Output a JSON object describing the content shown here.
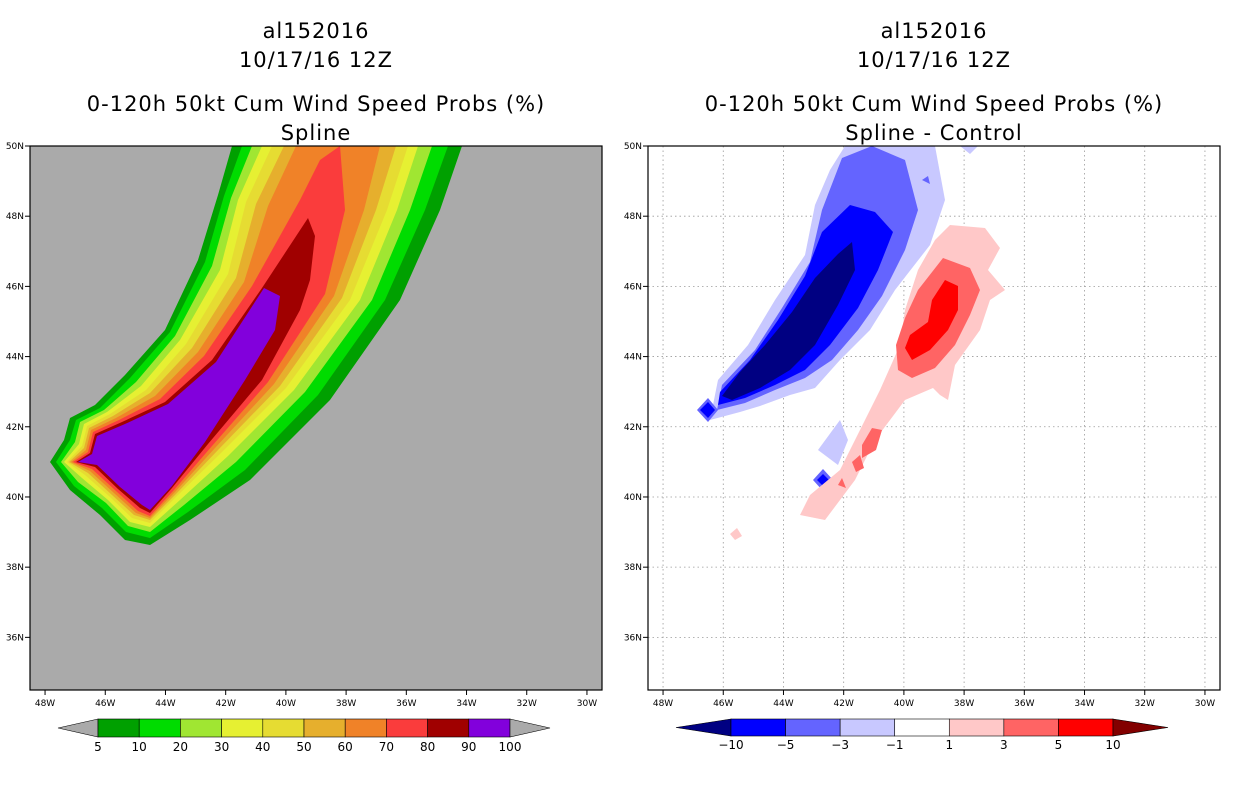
{
  "left_panel": {
    "title_line1": "al152016",
    "title_line2": "10/17/16 12Z",
    "title_line3": "0-120h 50kt Cum Wind Speed Probs (%)",
    "title_line4": "Spline"
  },
  "right_panel": {
    "title_line1": "al152016",
    "title_line2": "10/17/16 12Z",
    "title_line3": "0-120h 50kt Cum Wind Speed Probs (%)",
    "title_line4": "Spline - Control"
  },
  "colors": {
    "background_land": "#aaaaaa",
    "left_scale": [
      "#00a000",
      "#00dc00",
      "#a0e632",
      "#e6f032",
      "#e6dc32",
      "#e6af2d",
      "#f08228",
      "#fa3c3c",
      "#a00000",
      "#8200dc"
    ],
    "right_scale": [
      "#000082",
      "#0000ff",
      "#6464ff",
      "#c8c8ff",
      "#ffffff",
      "#ffc8c8",
      "#ff6464",
      "#ff0000",
      "#820000"
    ]
  },
  "chart_data": [
    {
      "type": "heatmap",
      "title": "0-120h 50kt Cum Wind Speed Probs (%) Spline",
      "x_axis": {
        "range_deg_w": [
          48.5,
          29.5
        ],
        "ticks": [
          "48W",
          "46W",
          "44W",
          "42W",
          "40W",
          "38W",
          "36W",
          "34W",
          "32W",
          "30W"
        ],
        "tick_values": [
          48,
          46,
          44,
          42,
          40,
          38,
          36,
          34,
          32,
          30
        ]
      },
      "y_axis": {
        "range_deg_n": [
          34.5,
          50
        ],
        "ticks": [
          "36N",
          "38N",
          "40N",
          "42N",
          "44N",
          "46N",
          "48N",
          "50N"
        ],
        "tick_values": [
          36,
          38,
          40,
          42,
          44,
          46,
          48,
          50
        ]
      },
      "grid": false,
      "colorbar": {
        "labels": [
          "5",
          "10",
          "20",
          "30",
          "40",
          "50",
          "60",
          "70",
          "80",
          "90",
          "100"
        ],
        "values": [
          5,
          10,
          20,
          30,
          40,
          50,
          60,
          70,
          80,
          90,
          100
        ],
        "extend": "both"
      }
    },
    {
      "type": "heatmap",
      "title": "0-120h 50kt Cum Wind Speed Probs (%) Spline - Control",
      "x_axis": {
        "range_deg_w": [
          48.5,
          29.5
        ],
        "ticks": [
          "48W",
          "46W",
          "44W",
          "42W",
          "40W",
          "38W",
          "36W",
          "34W",
          "32W",
          "30W"
        ],
        "tick_values": [
          48,
          46,
          44,
          42,
          40,
          38,
          36,
          34,
          32,
          30
        ]
      },
      "y_axis": {
        "range_deg_n": [
          34.5,
          50
        ],
        "ticks": [
          "36N",
          "38N",
          "40N",
          "42N",
          "44N",
          "46N",
          "48N",
          "50N"
        ],
        "tick_values": [
          36,
          38,
          40,
          42,
          44,
          46,
          48,
          50
        ]
      },
      "grid": true,
      "colorbar": {
        "labels": [
          "-10",
          "-5",
          "-3",
          "-1",
          "1",
          "3",
          "5",
          "10"
        ],
        "values": [
          -10,
          -5,
          -3,
          -1,
          1,
          3,
          5,
          10
        ],
        "extend": "both"
      }
    }
  ]
}
